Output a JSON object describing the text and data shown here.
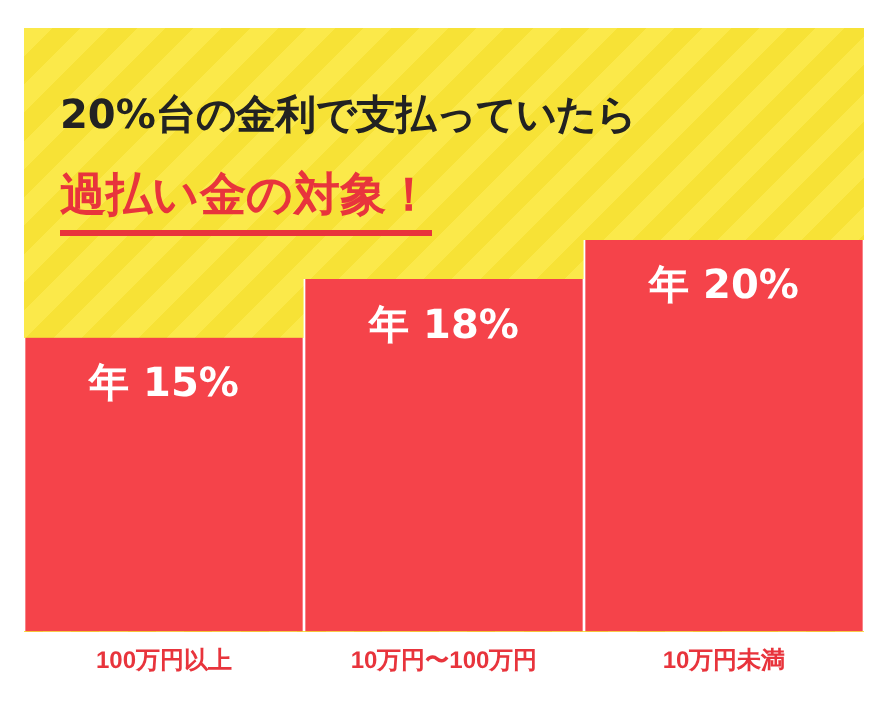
{
  "chart_data": {
    "type": "bar",
    "title": "20%台の金利で支払っていたら",
    "subtitle": "過払い金の対象！",
    "categories": [
      "100万円以上",
      "10万円〜100万円",
      "10万円未満"
    ],
    "values": [
      15,
      18,
      20
    ],
    "value_labels": [
      "年 15%",
      "年 18%",
      "年 20%"
    ],
    "color": "#f5434a",
    "grid": false,
    "legend": false
  }
}
